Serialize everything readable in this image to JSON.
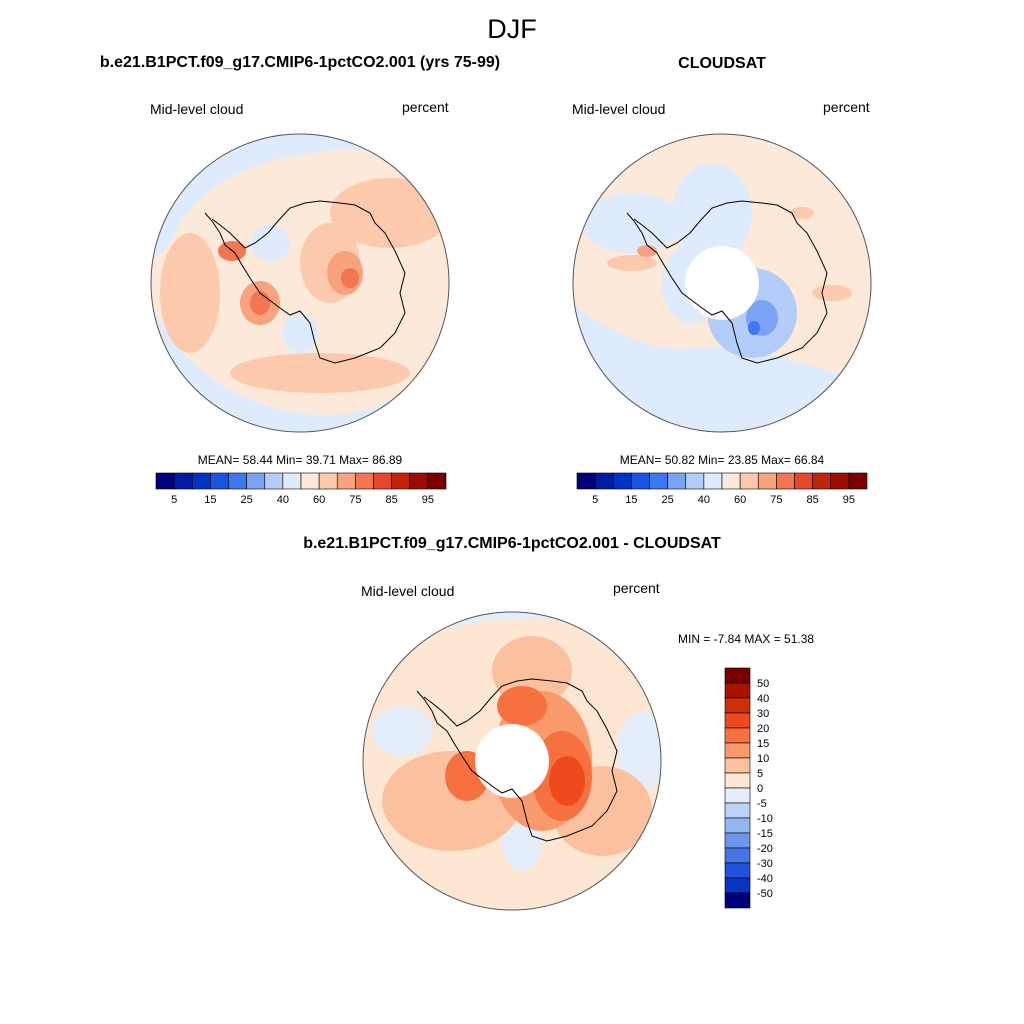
{
  "season": "DJF",
  "panels": [
    {
      "title": "b.e21.B1PCT.f09_g17.CMIP6-1pctCO2.001 (yrs 75-99)",
      "variable": "Mid-level cloud",
      "units": "percent",
      "stats": "MEAN=  58.44  Min=  39.71  Max=  86.89"
    },
    {
      "title": "CLOUDSAT",
      "variable": "Mid-level cloud",
      "units": "percent",
      "stats": "MEAN=  50.82  Min=  23.85  Max=  66.84"
    },
    {
      "title": "b.e21.B1PCT.f09_g17.CMIP6-1pctCO2.001 - CLOUDSAT",
      "variable": "Mid-level cloud",
      "units": "percent",
      "stats": "MIN =  -7.84 MAX =  51.38"
    }
  ],
  "chart_data": [
    {
      "type": "heatmap",
      "projection": "south polar stereographic",
      "title": "b.e21.B1PCT.f09_g17.CMIP6-1pctCO2.001 (yrs 75-99)",
      "variable": "Mid-level cloud",
      "units": "percent",
      "mean": 58.44,
      "min": 39.71,
      "max": 86.89,
      "colorbar_ticks": [
        "5",
        "15",
        "25",
        "40",
        "60",
        "75",
        "85",
        "95"
      ],
      "levels": [
        5,
        10,
        15,
        20,
        25,
        30,
        40,
        50,
        60,
        70,
        75,
        80,
        85,
        90,
        95
      ],
      "colors": [
        "#00007a",
        "#001aa0",
        "#0033c4",
        "#1a55e0",
        "#3d78ee",
        "#7aa3f4",
        "#b4cdf8",
        "#deebfc",
        "#fde9da",
        "#fcc9ad",
        "#f9a27f",
        "#f27651",
        "#e4472a",
        "#c0240f",
        "#9a0d02",
        "#7a0000"
      ]
    },
    {
      "type": "heatmap",
      "projection": "south polar stereographic",
      "title": "CLOUDSAT",
      "variable": "Mid-level cloud",
      "units": "percent",
      "mean": 50.82,
      "min": 23.85,
      "max": 66.84,
      "colorbar_ticks": [
        "5",
        "15",
        "25",
        "40",
        "60",
        "75",
        "85",
        "95"
      ],
      "levels": [
        5,
        10,
        15,
        20,
        25,
        30,
        40,
        50,
        60,
        70,
        75,
        80,
        85,
        90,
        95
      ],
      "colors": [
        "#00007a",
        "#001aa0",
        "#0033c4",
        "#1a55e0",
        "#3d78ee",
        "#7aa3f4",
        "#b4cdf8",
        "#deebfc",
        "#fde9da",
        "#fcc9ad",
        "#f9a27f",
        "#f27651",
        "#e4472a",
        "#c0240f",
        "#9a0d02",
        "#7a0000"
      ]
    },
    {
      "type": "heatmap",
      "projection": "south polar stereographic",
      "title": "b.e21.B1PCT.f09_g17.CMIP6-1pctCO2.001 - CLOUDSAT",
      "variable": "Mid-level cloud",
      "units": "percent",
      "min": -7.84,
      "max": 51.38,
      "colorbar_ticks": [
        "50",
        "40",
        "30",
        "20",
        "15",
        "10",
        "5",
        "0",
        "-5",
        "-10",
        "-15",
        "-20",
        "-30",
        "-40",
        "-50"
      ],
      "colors_top_to_bottom": [
        "#7a0000",
        "#a81300",
        "#cf2e08",
        "#ef4a1e",
        "#f7703f",
        "#f99a6d",
        "#fbc19f",
        "#fde6d2",
        "#e4eefb",
        "#bcd3f6",
        "#93b6f0",
        "#6c96ea",
        "#4574e6",
        "#2052dc",
        "#0a34bf",
        "#00007a"
      ]
    }
  ]
}
